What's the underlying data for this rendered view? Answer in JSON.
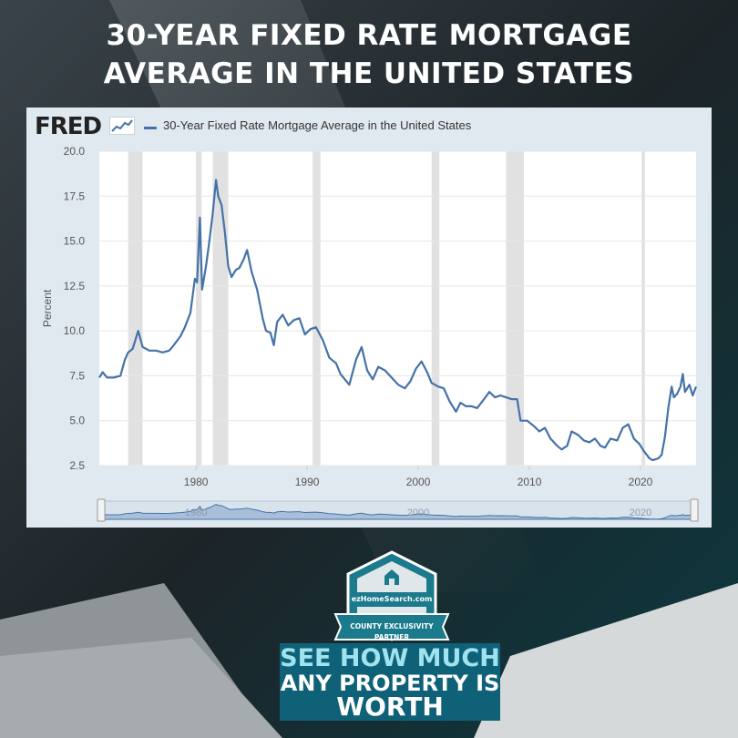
{
  "headline": {
    "line1": "30-YEAR FIXED RATE MORTGAGE",
    "line2": "AVERAGE IN THE UNITED STATES"
  },
  "chart_panel": {
    "logo_text": "FRED",
    "logo_icon": "trend-line-icon",
    "legend_label": "30-Year Fixed Rate Mortgage Average in the United States"
  },
  "chart_data": {
    "type": "line",
    "title": "",
    "xlabel": "",
    "ylabel": "Percent",
    "xlim": [
      1971.3,
      2025.0
    ],
    "ylim": [
      2.5,
      20.0
    ],
    "yticks": [
      "20.0",
      "17.5",
      "15.0",
      "12.5",
      "10.0",
      "7.5",
      "5.0",
      "2.5"
    ],
    "xticks": [
      "1980",
      "1990",
      "2000",
      "2010",
      "2020"
    ],
    "grid": true,
    "line_color": "#4572a7",
    "recession_color": "#e1e1e1",
    "recessions": [
      [
        1973.9,
        1975.2
      ],
      [
        1980.0,
        1980.5
      ],
      [
        1981.5,
        1982.9
      ],
      [
        1990.5,
        1991.2
      ],
      [
        2001.2,
        2001.9
      ],
      [
        2007.9,
        2009.5
      ],
      [
        2020.1,
        2020.4
      ]
    ],
    "series": [
      {
        "name": "30-Year Fixed Rate Mortgage Average in the United States",
        "x": [
          1971.3,
          1971.6,
          1972.0,
          1972.6,
          1973.2,
          1973.6,
          1973.9,
          1974.3,
          1974.8,
          1975.2,
          1975.8,
          1976.4,
          1977.0,
          1977.6,
          1978.0,
          1978.6,
          1979.0,
          1979.5,
          1979.9,
          1980.1,
          1980.35,
          1980.55,
          1980.9,
          1981.2,
          1981.5,
          1981.8,
          1982.0,
          1982.3,
          1982.6,
          1982.9,
          1983.2,
          1983.6,
          1983.9,
          1984.3,
          1984.6,
          1985.0,
          1985.5,
          1986.0,
          1986.3,
          1986.7,
          1987.0,
          1987.3,
          1987.8,
          1988.3,
          1988.8,
          1989.3,
          1989.8,
          1990.3,
          1990.8,
          1991.4,
          1992.0,
          1992.6,
          1993.0,
          1993.8,
          1994.4,
          1994.9,
          1995.4,
          1995.9,
          1996.4,
          1997.0,
          1997.6,
          1998.2,
          1998.8,
          1999.3,
          1999.8,
          2000.3,
          2000.8,
          2001.2,
          2001.8,
          2002.3,
          2002.8,
          2003.4,
          2003.8,
          2004.3,
          2004.8,
          2005.3,
          2005.8,
          2006.4,
          2006.9,
          2007.4,
          2007.9,
          2008.4,
          2008.9,
          2009.2,
          2009.8,
          2010.4,
          2010.9,
          2011.4,
          2011.9,
          2012.5,
          2012.9,
          2013.4,
          2013.8,
          2014.4,
          2014.9,
          2015.4,
          2015.9,
          2016.4,
          2016.8,
          2017.3,
          2017.9,
          2018.4,
          2018.9,
          2019.4,
          2019.9,
          2020.3,
          2020.8,
          2021.1,
          2021.6,
          2021.9,
          2022.2,
          2022.5,
          2022.8,
          2023.0,
          2023.3,
          2023.6,
          2023.8,
          2024.0,
          2024.4,
          2024.7,
          2025.0
        ],
        "values": [
          7.4,
          7.7,
          7.4,
          7.4,
          7.5,
          8.4,
          8.8,
          9.0,
          10.0,
          9.1,
          8.9,
          8.9,
          8.8,
          8.9,
          9.2,
          9.7,
          10.2,
          11.0,
          12.9,
          12.7,
          16.3,
          12.3,
          13.6,
          15.0,
          16.5,
          18.4,
          17.5,
          17.0,
          15.5,
          13.6,
          13.0,
          13.4,
          13.5,
          14.0,
          14.5,
          13.3,
          12.3,
          10.7,
          10.0,
          9.9,
          9.2,
          10.5,
          10.9,
          10.3,
          10.6,
          10.7,
          9.8,
          10.1,
          10.2,
          9.5,
          8.5,
          8.2,
          7.6,
          7.0,
          8.4,
          9.1,
          7.8,
          7.3,
          8.0,
          7.8,
          7.4,
          7.0,
          6.8,
          7.2,
          7.9,
          8.3,
          7.7,
          7.1,
          6.9,
          6.8,
          6.1,
          5.5,
          6.0,
          5.8,
          5.8,
          5.7,
          6.1,
          6.6,
          6.3,
          6.4,
          6.3,
          6.2,
          6.2,
          5.0,
          5.0,
          4.7,
          4.4,
          4.6,
          4.0,
          3.6,
          3.4,
          3.6,
          4.4,
          4.2,
          3.9,
          3.8,
          4.0,
          3.6,
          3.5,
          4.0,
          3.9,
          4.6,
          4.8,
          4.0,
          3.7,
          3.3,
          2.9,
          2.8,
          2.9,
          3.1,
          4.1,
          5.7,
          6.9,
          6.3,
          6.5,
          6.9,
          7.6,
          6.6,
          7.0,
          6.4,
          6.9
        ]
      }
    ],
    "navigator": {
      "labels": [
        "1980",
        "2000",
        "2020"
      ]
    }
  },
  "badge": {
    "brand": "ezHomeSearch.com",
    "ribbon": "COUNTY EXCLUSIVITY PARTNER",
    "icon": "home-shield-icon"
  },
  "cta": {
    "line1": "SEE HOW MUCH",
    "line2": "ANY PROPERTY IS",
    "line3": "WORTH"
  },
  "colors": {
    "background": "#1b2327",
    "panel": "#e1e9f0",
    "line": "#4572a7",
    "cta_bg": "#0f6178"
  }
}
